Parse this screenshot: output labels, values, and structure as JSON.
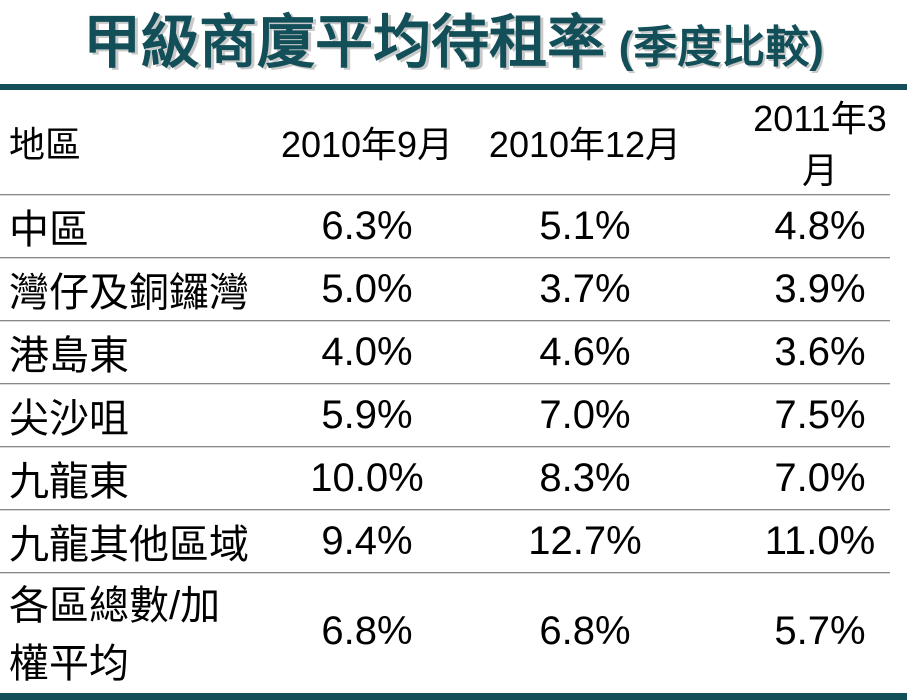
{
  "title": {
    "main": "甲級商廈平均待租率",
    "suffix": "(季度比較)"
  },
  "table": {
    "columns": [
      "地區",
      "2010年9月",
      "2010年12月",
      "2011年3月"
    ],
    "rows": [
      {
        "region": "中區",
        "values": [
          "6.3%",
          "5.1%",
          "4.8%"
        ]
      },
      {
        "region": "灣仔及銅鑼灣",
        "values": [
          "5.0%",
          "3.7%",
          "3.9%"
        ]
      },
      {
        "region": "港島東",
        "values": [
          "4.0%",
          "4.6%",
          "3.6%"
        ]
      },
      {
        "region": "尖沙咀",
        "values": [
          "5.9%",
          "7.0%",
          "7.5%"
        ]
      },
      {
        "region": "九龍東",
        "values": [
          "10.0%",
          "8.3%",
          "7.0%"
        ]
      },
      {
        "region": "九龍其他區域",
        "values": [
          "9.4%",
          "12.7%",
          "11.0%"
        ]
      },
      {
        "region": "各區總數/加權平均",
        "values": [
          "6.8%",
          "6.8%",
          "5.7%"
        ]
      }
    ]
  },
  "colors": {
    "accent_teal": "#134f59",
    "divider_gray": "#878787",
    "text": "#000000"
  },
  "chart_data": {
    "type": "table",
    "title": "甲級商廈平均待租率 (季度比較)",
    "row_header": "地區",
    "columns": [
      "2010年9月",
      "2010年12月",
      "2011年3月"
    ],
    "unit": "percent",
    "rows": [
      {
        "region": "中區",
        "values": [
          6.3,
          5.1,
          4.8
        ]
      },
      {
        "region": "灣仔及銅鑼灣",
        "values": [
          5.0,
          3.7,
          3.9
        ]
      },
      {
        "region": "港島東",
        "values": [
          4.0,
          4.6,
          3.6
        ]
      },
      {
        "region": "尖沙咀",
        "values": [
          5.9,
          7.0,
          7.5
        ]
      },
      {
        "region": "九龍東",
        "values": [
          10.0,
          8.3,
          7.0
        ]
      },
      {
        "region": "九龍其他區域",
        "values": [
          9.4,
          12.7,
          11.0
        ]
      },
      {
        "region": "各區總數/加權平均",
        "values": [
          6.8,
          6.8,
          5.7
        ]
      }
    ]
  }
}
